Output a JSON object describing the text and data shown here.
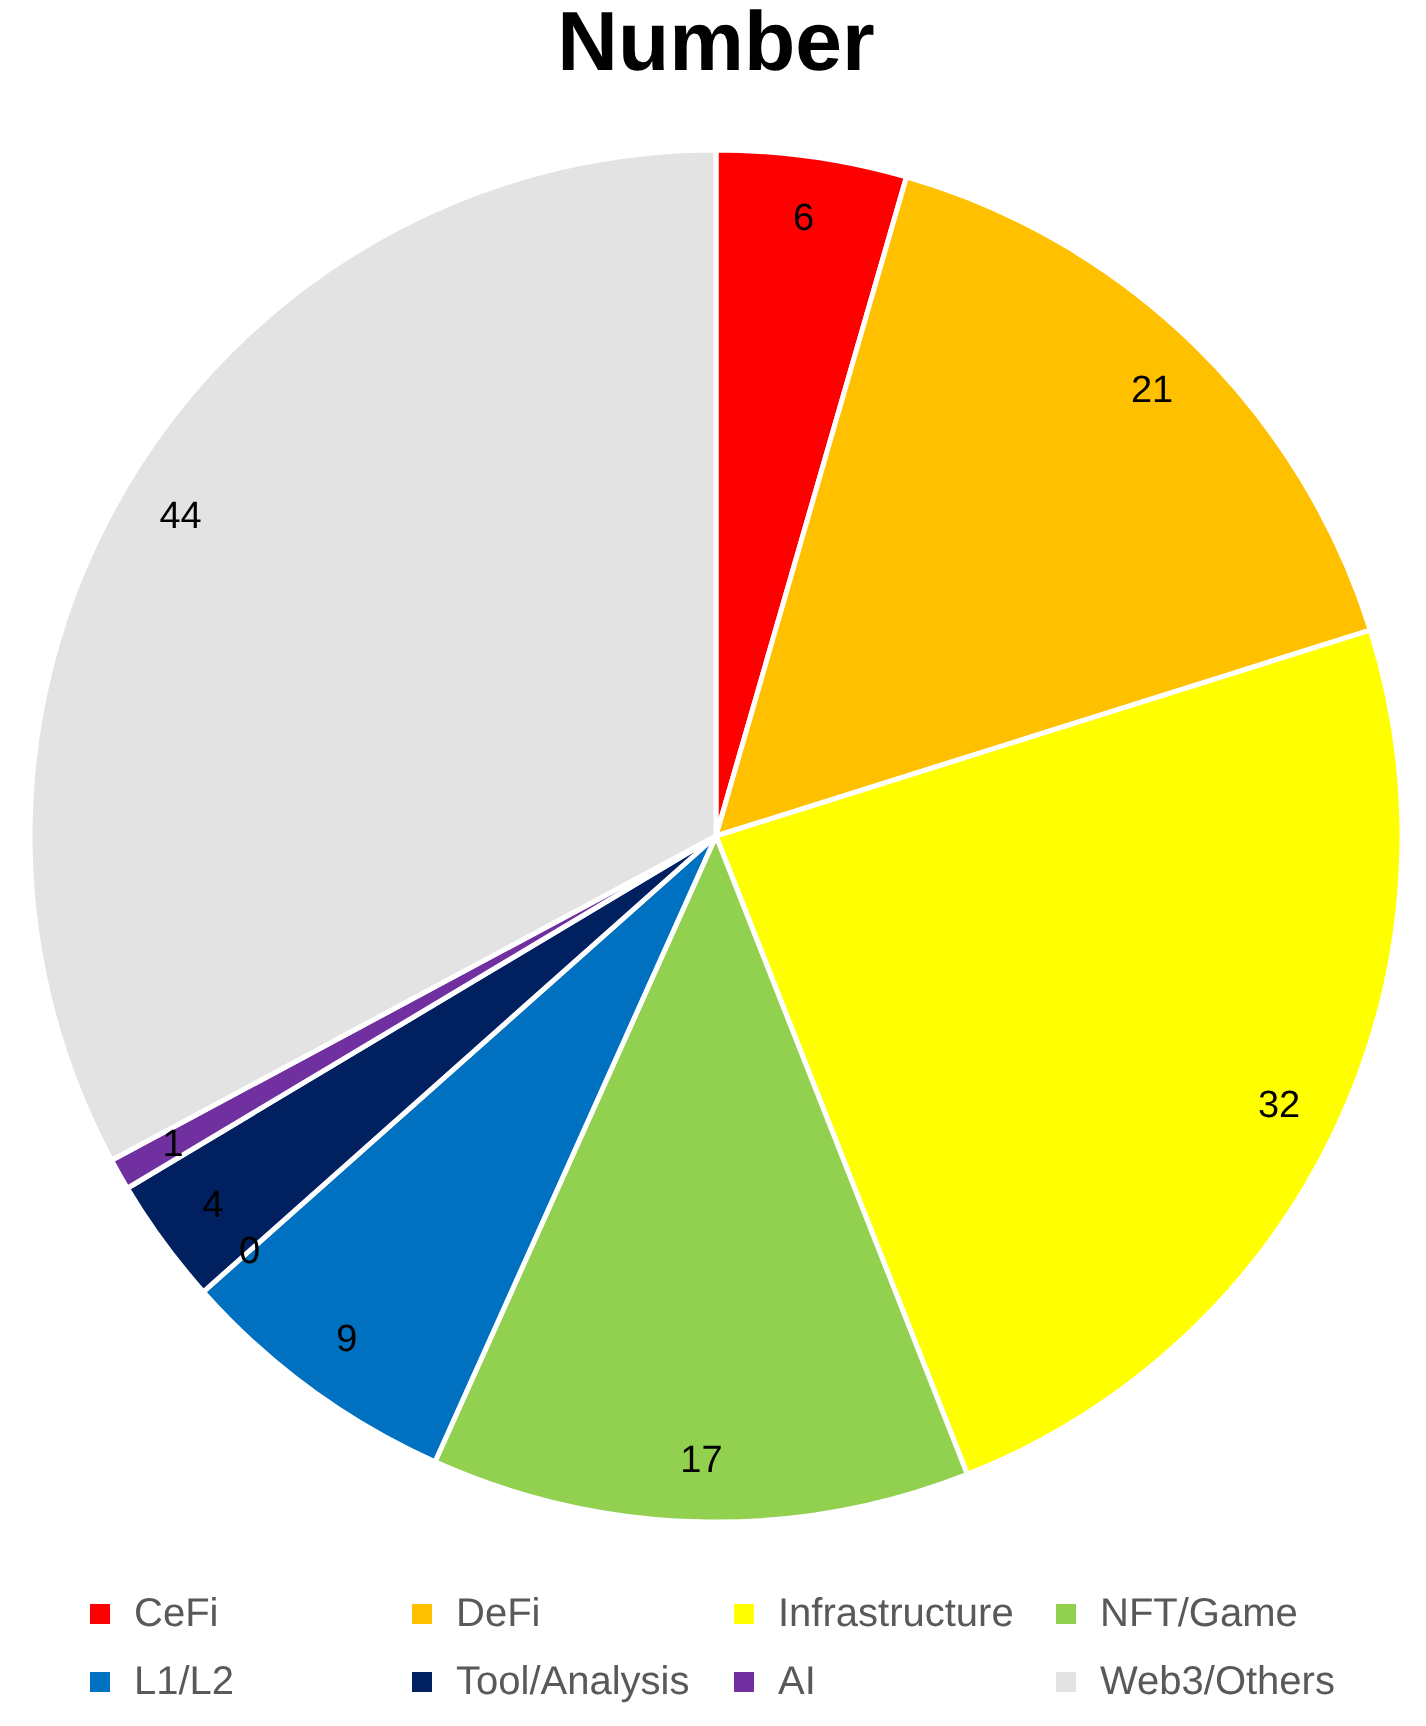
{
  "chart_data": {
    "type": "pie",
    "title": "Number",
    "categories": [
      "CeFi",
      "DeFi",
      "Infrastructure",
      "NFT/Game",
      "L1/L2",
      null,
      "Tool/Analysis",
      "AI",
      "Web3/Others"
    ],
    "values": [
      6,
      21,
      32,
      17,
      9,
      0,
      4,
      1,
      44
    ],
    "value_labels": [
      "6",
      "21",
      "32",
      "17",
      "9",
      "0",
      "4",
      "1",
      "44"
    ],
    "colors": [
      "#ff0000",
      "#ffc000",
      "#ffff00",
      "#92d050",
      "#0070c0",
      "#00b0f0",
      "#002060",
      "#7030a0",
      "#e3e3e3"
    ],
    "legend": "bottom"
  }
}
